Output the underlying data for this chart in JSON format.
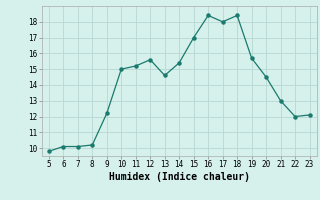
{
  "x": [
    5,
    6,
    7,
    8,
    9,
    10,
    11,
    12,
    13,
    14,
    15,
    16,
    17,
    18,
    19,
    20,
    21,
    22,
    23
  ],
  "y": [
    9.8,
    10.1,
    10.1,
    10.2,
    12.2,
    15.0,
    15.2,
    15.6,
    14.6,
    15.4,
    17.0,
    18.4,
    18.0,
    18.4,
    15.7,
    14.5,
    13.0,
    12.0,
    12.1
  ],
  "line_color": "#1a7a6e",
  "bg_color": "#d6f0eb",
  "grid_color": "#b8d8d2",
  "xlabel": "Humidex (Indice chaleur)",
  "ylim": [
    9.5,
    19.0
  ],
  "xlim": [
    4.5,
    23.5
  ],
  "yticks": [
    10,
    11,
    12,
    13,
    14,
    15,
    16,
    17,
    18
  ],
  "xticks": [
    5,
    6,
    7,
    8,
    9,
    10,
    11,
    12,
    13,
    14,
    15,
    16,
    17,
    18,
    19,
    20,
    21,
    22,
    23
  ],
  "tick_fontsize": 5.5,
  "xlabel_fontsize": 7.0
}
